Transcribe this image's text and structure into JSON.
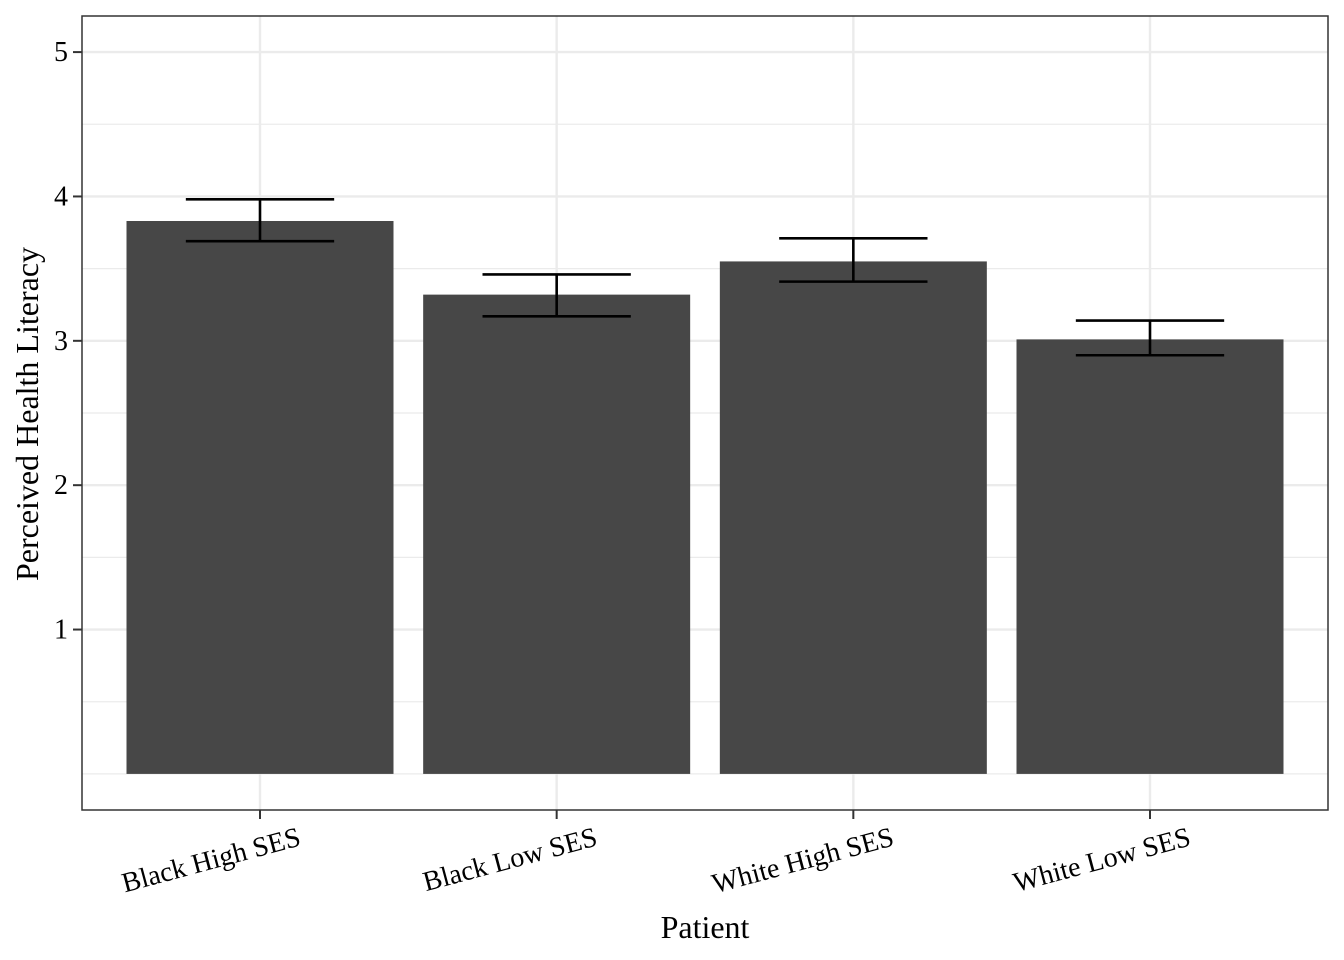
{
  "chart_data": {
    "type": "bar",
    "title": "",
    "xlabel": "Patient",
    "ylabel": "Perceived Health Literacy",
    "categories": [
      "Black High SES",
      "Black Low SES",
      "White High SES",
      "White Low SES"
    ],
    "values": [
      3.83,
      3.32,
      3.55,
      3.01
    ],
    "error_low": [
      3.69,
      3.17,
      3.41,
      2.9
    ],
    "error_high": [
      3.98,
      3.46,
      3.71,
      3.14
    ],
    "ylim": [
      -0.25,
      5.25
    ],
    "yticks": [
      1,
      2,
      3,
      4,
      5
    ],
    "yticks_minor": [
      0.5,
      1.5,
      2.5,
      3.5,
      4.5
    ],
    "grid": true,
    "legend": "none",
    "bar_color": "#474747",
    "error_color": "#000000",
    "grid_color": "#ebebeb"
  }
}
